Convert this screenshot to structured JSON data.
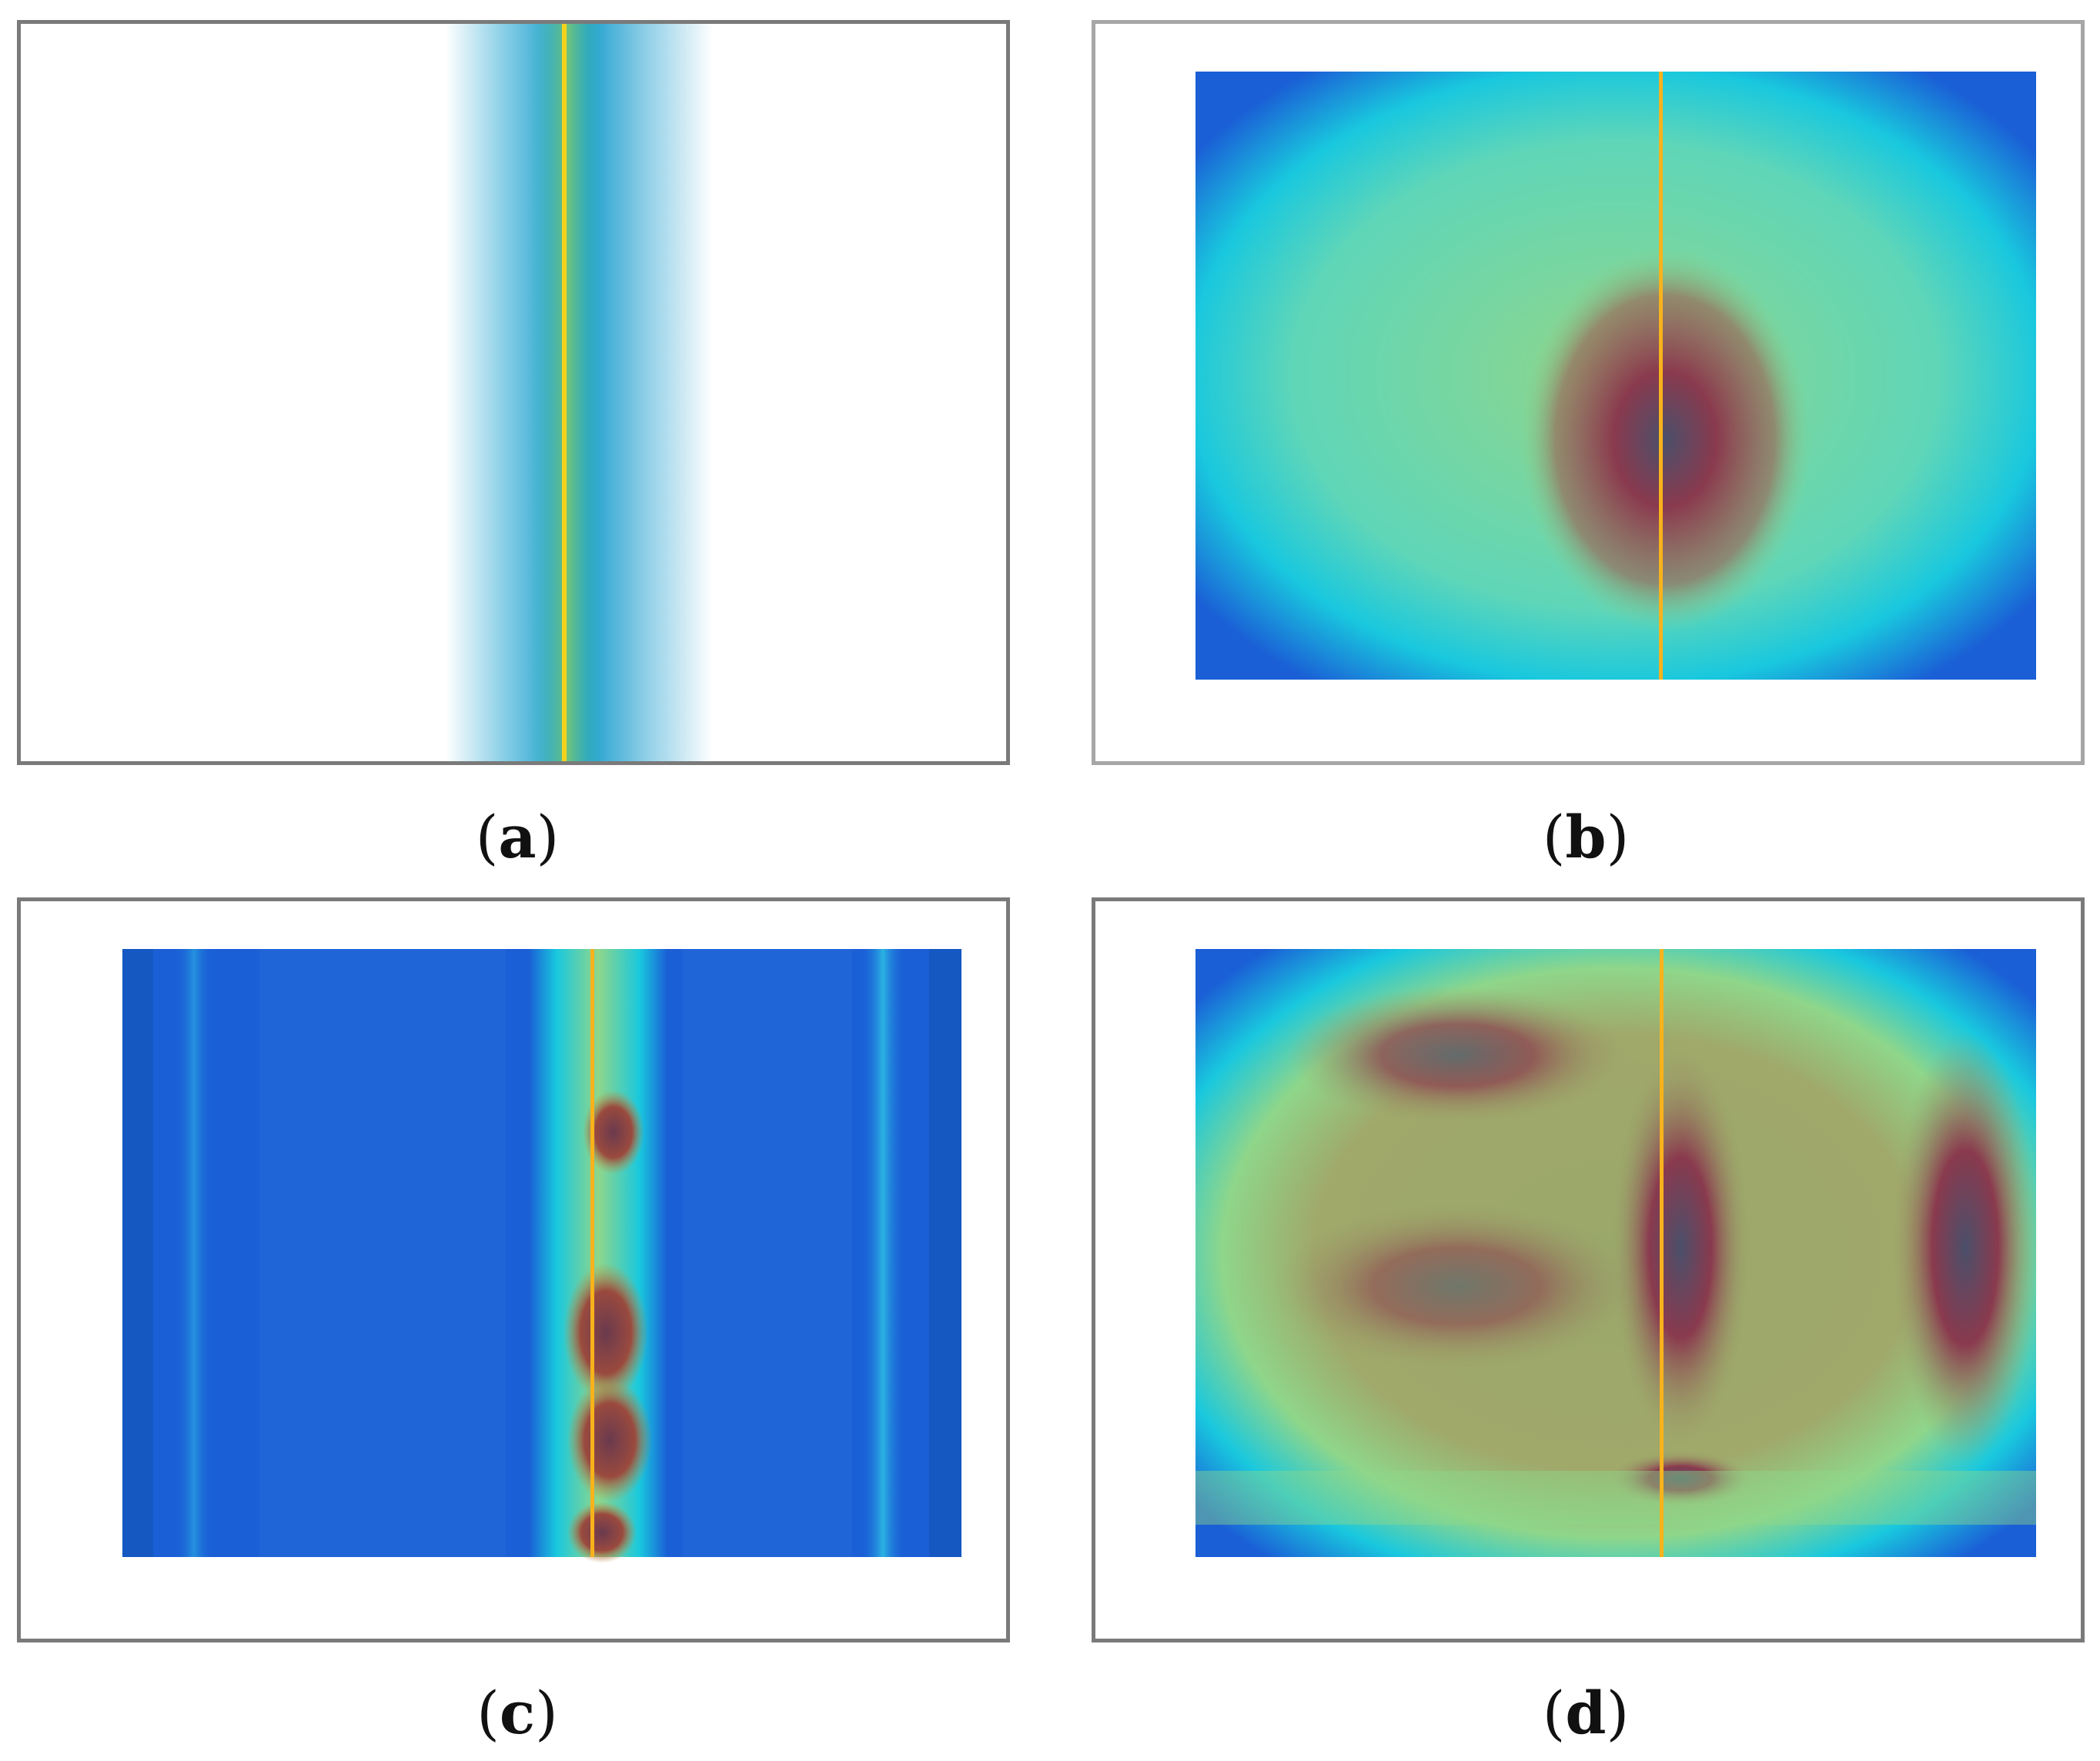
{
  "panels": [
    {
      "id": "a",
      "label": "a"
    },
    {
      "id": "b",
      "label": "b"
    },
    {
      "id": "c",
      "label": "c"
    },
    {
      "id": "d",
      "label": "d"
    }
  ],
  "colors": {
    "background_blue": "#1a5fd6",
    "cyan": "#19d0de",
    "green": "#8fd68a",
    "hot_red": "#8a3a4e",
    "center_line": "#f7d21c",
    "frame": "#7a7a7a"
  }
}
